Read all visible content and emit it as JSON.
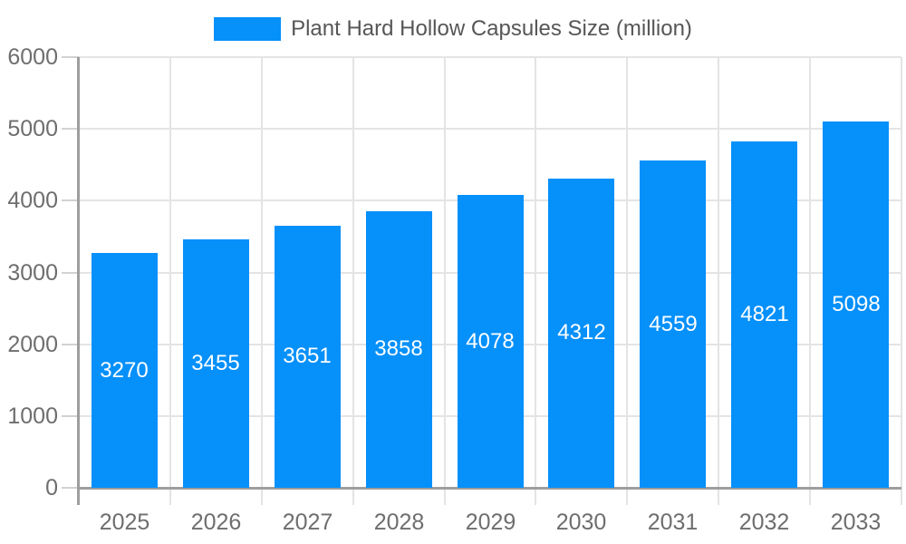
{
  "chart_data": {
    "type": "bar",
    "title": "Plant Hard Hollow Capsules Size (million)",
    "categories": [
      "2025",
      "2026",
      "2027",
      "2028",
      "2029",
      "2030",
      "2031",
      "2032",
      "2033"
    ],
    "values": [
      3270,
      3455,
      3651,
      3858,
      4078,
      4312,
      4559,
      4821,
      5098
    ],
    "xlabel": "",
    "ylabel": "",
    "ylim": [
      0,
      6000
    ],
    "yticks": [
      0,
      1000,
      2000,
      3000,
      4000,
      5000,
      6000
    ],
    "grid": true,
    "legend_position": "top-center",
    "value_label_position": "inside-center",
    "colors": {
      "bar": "#0590fa",
      "grid": "#e4e4e4",
      "axis": "#9e9e9e",
      "tick": "#d2d2d2",
      "axis_label": "#6e6e6e",
      "legend_text": "#565656",
      "value_label": "#ffffff",
      "background": "#ffffff"
    }
  }
}
